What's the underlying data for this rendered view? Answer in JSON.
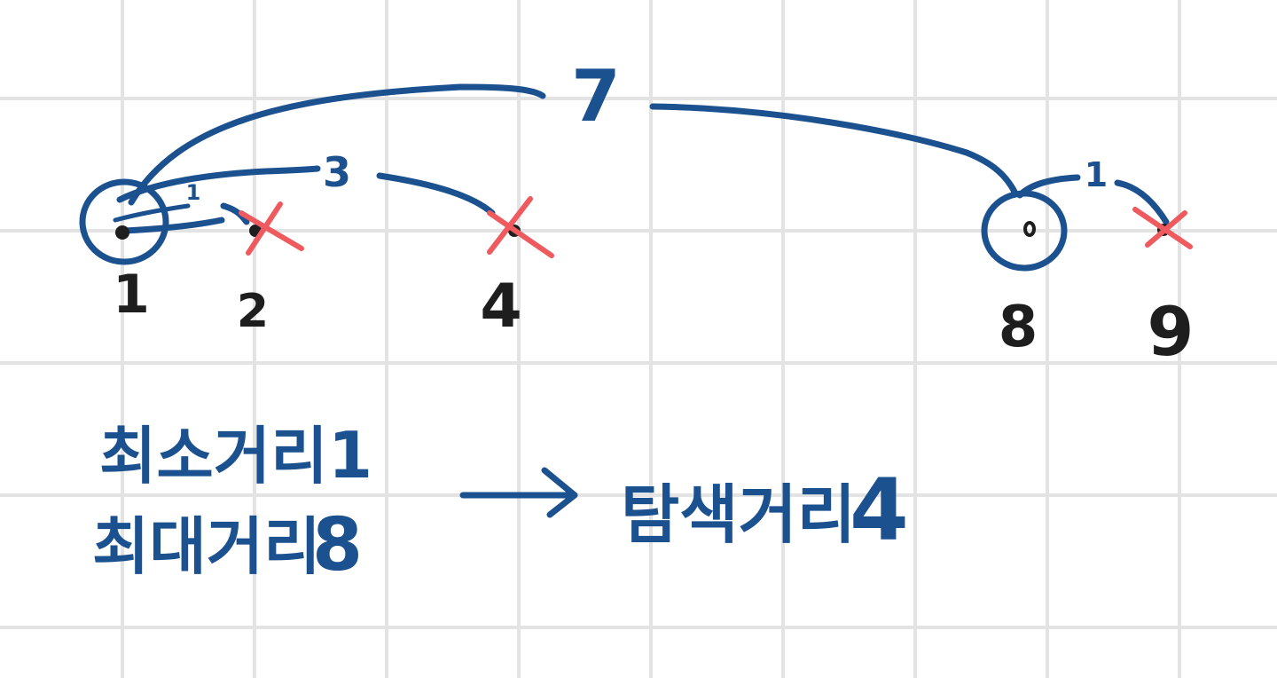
{
  "points": [
    {
      "label": "1",
      "role": "selected",
      "x": 1
    },
    {
      "label": "2",
      "role": "excluded",
      "x": 2
    },
    {
      "label": "4",
      "role": "excluded",
      "x": 4
    },
    {
      "label": "8",
      "role": "selected",
      "x": 8
    },
    {
      "label": "9",
      "role": "excluded",
      "x": 9
    }
  ],
  "distances": {
    "d_1_2": "1",
    "d_1_4": "3",
    "d_1_8": "7",
    "d_8_9": "1"
  },
  "notes": {
    "min_label": "최소거리",
    "min_value": "1",
    "max_label": "최대거리",
    "max_value": "8",
    "search_label": "탐색거리",
    "search_value": "4"
  },
  "colors": {
    "ink": "#1c5190",
    "cross": "#ee5a5e",
    "text": "#1e1e1e",
    "grid": "#e3e3e3"
  }
}
